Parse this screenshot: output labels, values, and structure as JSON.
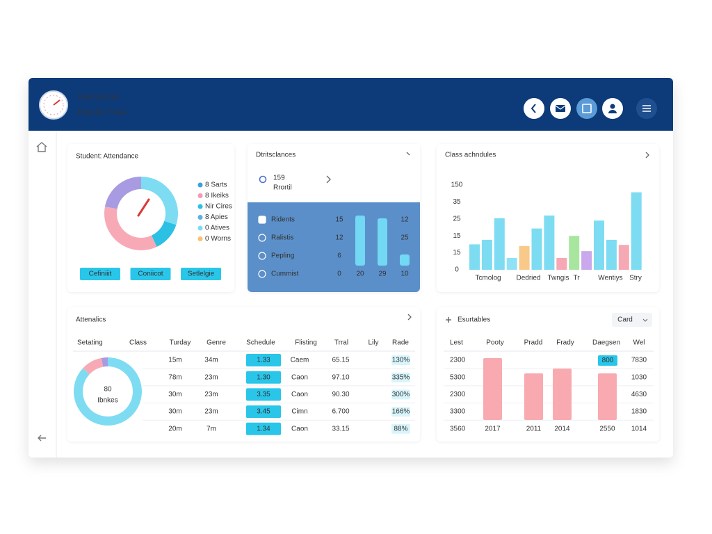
{
  "header": {
    "title": "Strat Scchool",
    "subtitle": "Enlerdion Tislee"
  },
  "attendance": {
    "title": "Student: Attendance",
    "segments": [
      {
        "color": "#7ddcf2",
        "value": 30
      },
      {
        "color": "#2bc0e4",
        "value": 13
      },
      {
        "color": "#f7aab6",
        "value": 35
      },
      {
        "color": "#a89be2",
        "value": 22
      }
    ],
    "legend": [
      {
        "label": "8 Sarts",
        "color": "#3a9fe0"
      },
      {
        "label": "8 Ikeiks",
        "color": "#f59ab0"
      },
      {
        "label": "Nir Cires",
        "color": "#2bc0e4"
      },
      {
        "label": "8 Apies",
        "color": "#5ab0e8"
      },
      {
        "label": "0 Atives",
        "color": "#7ddcf2"
      },
      {
        "label": "0 Worns",
        "color": "#f9c070"
      }
    ],
    "buttons": [
      "Cefiniiit",
      "Coniicot",
      "Setlelgie"
    ]
  },
  "distances": {
    "title": "Dtritsclances",
    "stat": "159",
    "stat_label": "Rrortil",
    "rows": [
      {
        "label": "Ridents",
        "value": "15",
        "end": "12"
      },
      {
        "label": "Ralistis",
        "value": "12",
        "end": "25"
      },
      {
        "label": "Pepling",
        "value": "6"
      },
      {
        "label": "Cummist",
        "value": "0",
        "end": "10"
      }
    ],
    "bars": [
      72,
      68,
      16
    ],
    "bar_color": "#72d8f3",
    "bar_labels": [
      "20",
      "29"
    ]
  },
  "classes": {
    "title": "Class achndules",
    "ylim": [
      0,
      150
    ],
    "ytick_labels": [
      "150",
      "35",
      "25",
      "15",
      "15",
      "0"
    ],
    "x_labels": [
      "Tcmolog",
      "Dedried",
      "Twngis",
      "Tr",
      "Wentiys",
      "Stry"
    ],
    "bars": [
      {
        "value": 45,
        "color": "#7ddcf2"
      },
      {
        "value": 53,
        "color": "#7ddcf2"
      },
      {
        "value": 91,
        "color": "#7ddcf2"
      },
      {
        "value": 21,
        "color": "#8fe2f5"
      },
      {
        "value": 42,
        "color": "#f9c98a"
      },
      {
        "value": 73,
        "color": "#7ddcf2"
      },
      {
        "value": 96,
        "color": "#7ddcf2"
      },
      {
        "value": 21,
        "color": "#f7a8b5"
      },
      {
        "value": 60,
        "color": "#a8e6a0"
      },
      {
        "value": 33,
        "color": "#c9a8ec"
      },
      {
        "value": 87,
        "color": "#7ddcf2"
      },
      {
        "value": 53,
        "color": "#7ddcf2"
      },
      {
        "value": 44,
        "color": "#f7a8b5"
      },
      {
        "value": 137,
        "color": "#7ddcf2"
      }
    ]
  },
  "attendance_table": {
    "title": "Attenalics",
    "columns": [
      "Setating",
      "Class",
      "Turday",
      "Genre",
      "Schedule",
      "Flisting",
      "Trral",
      "Lily",
      "Rade"
    ],
    "rows": [
      [
        "15m",
        "34m",
        "1.33",
        "Caem",
        "65.15",
        "130%"
      ],
      [
        "78m",
        "23m",
        "1.30",
        "Caon",
        "97.10",
        "335%"
      ],
      [
        "30m",
        "23m",
        "3.35",
        "Caon",
        "90.30",
        "300%"
      ],
      [
        "30m",
        "23m",
        "3.45",
        "Cimn",
        "6.700",
        "166%"
      ],
      [
        "20m",
        "7m",
        "1.34",
        "Caon",
        "33.15",
        "88%"
      ]
    ],
    "donut": {
      "center": "80",
      "caption": "Ibnkes",
      "segments": [
        {
          "color": "#7ddcf2",
          "value": 87
        },
        {
          "color": "#f7aab6",
          "value": 10
        },
        {
          "color": "#a89be2",
          "value": 3
        }
      ]
    }
  },
  "tables": {
    "title": "Esurtables",
    "button": "Card",
    "columns": [
      "Lest",
      "Pooty",
      "Pradd",
      "Frady",
      "Daegsen",
      "Wel"
    ],
    "left": [
      "2300",
      "5300",
      "2300",
      "3300",
      "3560"
    ],
    "right": [
      "7830",
      "1030",
      "4630",
      "1830",
      "1014"
    ],
    "badge": "800",
    "bars": [
      89,
      67,
      74,
      67
    ],
    "bar_color": "#f9aab0",
    "bar_labels": [
      "2017",
      "2011",
      "2014",
      "2550"
    ]
  }
}
